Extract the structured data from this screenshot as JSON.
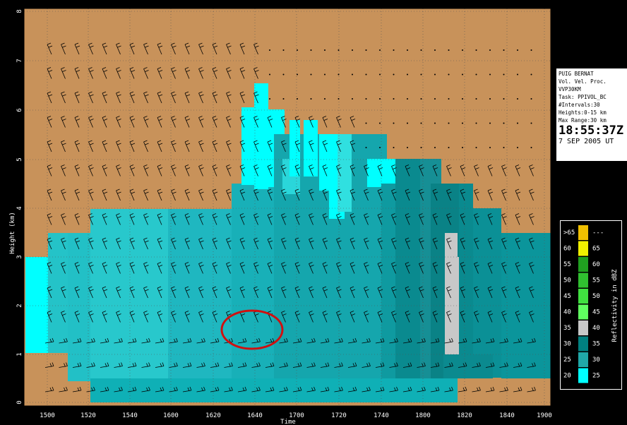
{
  "chart_data": {
    "type": "heatmap",
    "title": "",
    "xlabel": "Time",
    "ylabel": "Height (km)",
    "x_ticks": [
      "1500",
      "1520",
      "1540",
      "1600",
      "1620",
      "1640",
      "1700",
      "1720",
      "1740",
      "1800",
      "1820",
      "1840",
      "1900"
    ],
    "y_ticks": [
      "0",
      "1",
      "2",
      "3",
      "4",
      "5",
      "6",
      "7",
      "8"
    ],
    "xlim_minutes_index": [
      0,
      13
    ],
    "ylim": [
      0,
      8
    ],
    "reflectivity_columns": [
      {
        "time_index": 0,
        "top_km": 2.9,
        "bottom_km": 1.1,
        "dbz": 20
      },
      {
        "time_index": 1,
        "top_km": 3.5,
        "bottom_km": 0.5,
        "dbz": 25
      },
      {
        "time_index": 2,
        "top_km": 3.5,
        "bottom_km": 0.5,
        "dbz": 25
      },
      {
        "time_index": 3,
        "top_km": 3.5,
        "bottom_km": 0.5,
        "dbz": 25
      },
      {
        "time_index": 4,
        "top_km": 4.0,
        "bottom_km": 0.5,
        "dbz": 25
      },
      {
        "time_index": 5,
        "top_km": 4.5,
        "bottom_km": 0.5,
        "dbz": 25
      },
      {
        "time_index": 6,
        "top_km": 6.5,
        "bottom_km": 0.5,
        "dbz": 30
      },
      {
        "time_index": 7,
        "top_km": 5.5,
        "bottom_km": 0.5,
        "dbz": 25
      },
      {
        "time_index": 8,
        "top_km": 5.0,
        "bottom_km": 0.5,
        "dbz": 30
      },
      {
        "time_index": 9,
        "top_km": 5.0,
        "bottom_km": 0.5,
        "dbz": 30
      },
      {
        "time_index": 10,
        "top_km": 4.5,
        "bottom_km": 0.5,
        "dbz": 30
      },
      {
        "time_index": 11,
        "top_km": 3.5,
        "bottom_km": 0.5,
        "dbz": 30
      },
      {
        "time_index": 12,
        "top_km": 3.5,
        "bottom_km": 0.5,
        "dbz": 30
      }
    ],
    "legend": {
      "title": "Reflectivity in dBZ",
      "entries": [
        {
          "low": ">65",
          "high": "---",
          "color": "#f0c000"
        },
        {
          "low": "60",
          "high": "65",
          "color": "#f0f000"
        },
        {
          "low": "55",
          "high": "60",
          "color": "#20a020"
        },
        {
          "low": "50",
          "high": "55",
          "color": "#30c030"
        },
        {
          "low": "45",
          "high": "50",
          "color": "#40e040"
        },
        {
          "low": "40",
          "high": "45",
          "color": "#60ff60"
        },
        {
          "low": "35",
          "high": "40",
          "color": "#c8c8c8"
        },
        {
          "low": "30",
          "high": "35",
          "color": "#008080"
        },
        {
          "low": "25",
          "high": "30",
          "color": "#20a8a8"
        },
        {
          "low": "20",
          "high": "25",
          "color": "#00ffff"
        }
      ]
    },
    "annotation": {
      "shape": "ellipse",
      "color": "#d01010",
      "near_time": "1640",
      "near_height_km": 1.5
    }
  },
  "info": {
    "site": "PUIG BERNAT",
    "product": "Vol. Vel. Proc.",
    "name": "VVP30KM",
    "task": "Task: PPIVOL_BC",
    "intervals": "#Intervals:30",
    "heights": "Heights:0-15 km",
    "range": "Max Range:30 km",
    "time": "18:55:37Z",
    "date": "7 SEP 2005 UT"
  },
  "colors": {
    "background": "#c8925a",
    "cyan": "#00ffff",
    "teal": "#1fb7c0",
    "dark_teal": "#0a8a8f",
    "gray": "#c8c8c8"
  }
}
